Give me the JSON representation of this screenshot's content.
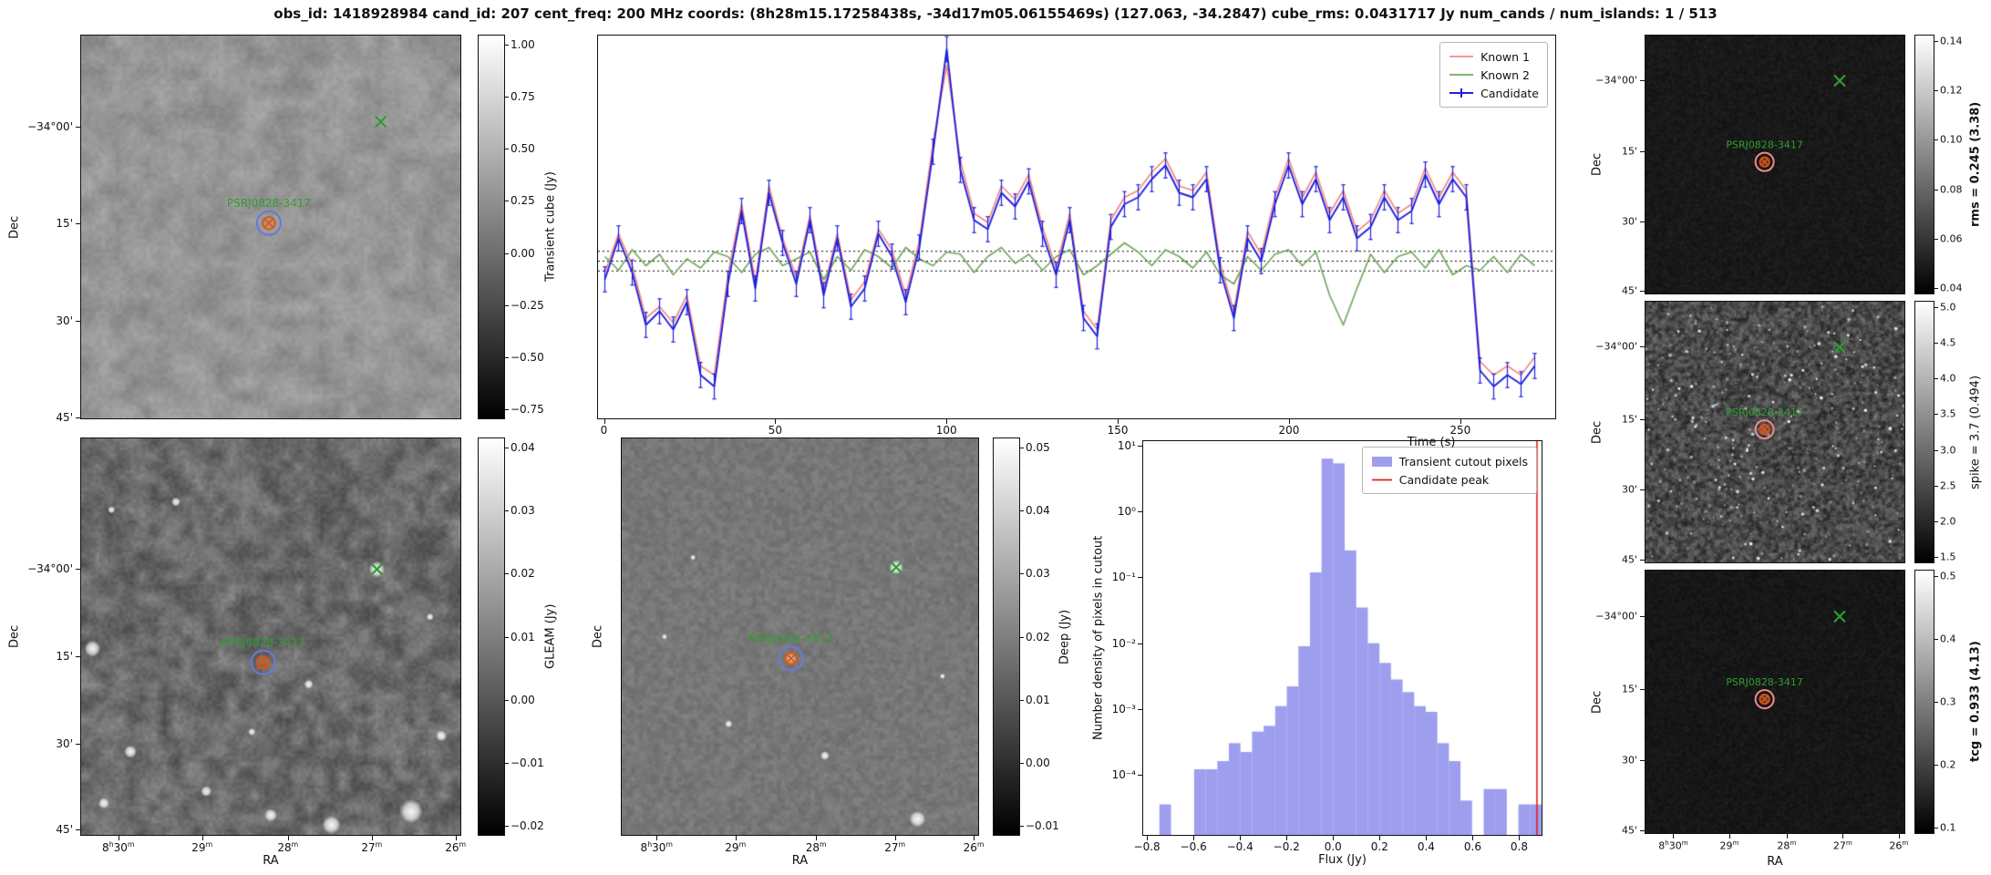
{
  "title": "obs_id: 1418928984 cand_id: 207 cent_freq: 200 MHz coords: (8h28m15.17258438s, -34d17m05.06155469s) (127.063, -34.2847) cube_rms: 0.0431717 Jy num_cands / num_islands: 1 / 513",
  "source": {
    "name": "PSRJ0828-3417"
  },
  "axes": {
    "dec_label": "Dec",
    "ra_label": "RA",
    "dec_ticks": [
      "−34°00'",
      "15'",
      "30'",
      "45'"
    ],
    "ra_ticks": [
      "8h30m",
      "29m",
      "28m",
      "27m",
      "26m"
    ]
  },
  "markers": {
    "known_x_color": "#2f9e2f",
    "source_label_color": "#2f9e2f",
    "source_marker_color": "#d9541e",
    "candidate_ring_color": "#6a79d8",
    "candidate_ring_color_dark": "#ef8a8a"
  },
  "panels": {
    "transient": {
      "cbar_label": "Transient cube (Jy)",
      "cbar_ticks": [
        "1.00",
        "0.75",
        "0.50",
        "0.25",
        "0.00",
        "−0.25",
        "−0.50",
        "−0.75"
      ]
    },
    "gleam": {
      "cbar_label": "GLEAM (Jy)",
      "cbar_ticks": [
        "0.04",
        "0.03",
        "0.02",
        "0.01",
        "0.00",
        "−0.01",
        "−0.02"
      ]
    },
    "deep": {
      "cbar_label": "Deep (Jy)",
      "cbar_ticks": [
        "0.05",
        "0.04",
        "0.03",
        "0.02",
        "0.01",
        "0.00",
        "−0.01"
      ]
    },
    "rms": {
      "label": "rms = 0.245 (3.38)",
      "emphasized": true,
      "cbar_ticks": [
        "0.14",
        "0.12",
        "0.10",
        "0.08",
        "0.06",
        "0.04"
      ]
    },
    "spike": {
      "label": "spike = 3.7 (0.494)",
      "emphasized": false,
      "cbar_ticks": [
        "5.0",
        "4.5",
        "4.0",
        "3.5",
        "3.0",
        "2.5",
        "2.0",
        "1.5"
      ]
    },
    "tcg": {
      "label": "tcg = 0.933 (4.13)",
      "emphasized": true,
      "cbar_ticks": [
        "0.5",
        "0.4",
        "0.3",
        "0.2",
        "0.1"
      ]
    }
  },
  "chart_data": [
    {
      "type": "line",
      "title": "",
      "xlabel": "Time (s)",
      "ylabel": "",
      "xlim": [
        -2,
        278
      ],
      "ylim": [
        -0.69,
        0.99
      ],
      "x_ticks": [
        0,
        50,
        100,
        150,
        200,
        250
      ],
      "threshold_lines": [
        0.0432,
        0.0,
        -0.0432
      ],
      "legend_position": "top-right",
      "x": [
        0,
        4,
        8,
        12,
        16,
        20,
        24,
        28,
        32,
        36,
        40,
        44,
        48,
        52,
        56,
        60,
        64,
        68,
        72,
        76,
        80,
        84,
        88,
        92,
        96,
        100,
        104,
        108,
        112,
        116,
        120,
        124,
        128,
        132,
        136,
        140,
        144,
        148,
        152,
        156,
        160,
        164,
        168,
        172,
        176,
        180,
        184,
        188,
        192,
        196,
        200,
        204,
        208,
        212,
        216,
        220,
        224,
        228,
        232,
        236,
        240,
        244,
        248,
        252,
        256,
        260,
        264,
        268,
        272
      ],
      "series": [
        {
          "name": "Known 1",
          "color": "#f28b82",
          "values": [
            -0.05,
            0.12,
            -0.02,
            -0.25,
            -0.2,
            -0.27,
            -0.15,
            -0.46,
            -0.5,
            -0.06,
            0.25,
            -0.09,
            0.33,
            0.1,
            -0.07,
            0.2,
            -0.12,
            0.12,
            -0.17,
            -0.09,
            0.14,
            0.05,
            -0.15,
            0.09,
            0.52,
            0.86,
            0.44,
            0.21,
            0.17,
            0.33,
            0.27,
            0.38,
            0.15,
            -0.03,
            0.21,
            -0.22,
            -0.3,
            0.18,
            0.28,
            0.31,
            0.39,
            0.45,
            0.33,
            0.31,
            0.39,
            -0.01,
            -0.22,
            0.13,
            0.03,
            0.28,
            0.45,
            0.28,
            0.39,
            0.21,
            0.31,
            0.13,
            0.18,
            0.31,
            0.21,
            0.25,
            0.41,
            0.28,
            0.39,
            0.31,
            -0.44,
            -0.5,
            -0.46,
            -0.5,
            -0.42
          ]
        },
        {
          "name": "Known 2",
          "color": "#74a862",
          "values": [
            0.02,
            -0.04,
            0.05,
            -0.02,
            0.03,
            -0.06,
            0.01,
            -0.03,
            0.04,
            0.02,
            -0.05,
            0.03,
            0.06,
            -0.02,
            0.01,
            0.04,
            -0.08,
            0.02,
            -0.04,
            0.05,
            0.02,
            -0.03,
            0.06,
            0.01,
            -0.02,
            0.04,
            0.03,
            -0.05,
            0.02,
            0.06,
            -0.01,
            0.03,
            -0.04,
            0.02,
            0.05,
            -0.06,
            -0.02,
            0.03,
            0.08,
            0.04,
            -0.02,
            0.05,
            0.02,
            -0.03,
            0.04,
            -0.06,
            -0.1,
            0.02,
            -0.04,
            0.03,
            0.05,
            -0.02,
            0.04,
            -0.15,
            -0.28,
            -0.12,
            0.03,
            -0.05,
            0.02,
            0.04,
            -0.03,
            0.05,
            -0.06,
            -0.02,
            -0.04,
            0.02,
            -0.05,
            0.03,
            -0.02
          ]
        },
        {
          "name": "Candidate",
          "color": "#2020dd",
          "yerr": 0.055,
          "values": [
            -0.08,
            0.1,
            -0.05,
            -0.28,
            -0.22,
            -0.3,
            -0.18,
            -0.5,
            -0.55,
            -0.1,
            0.22,
            -0.12,
            0.3,
            0.08,
            -0.1,
            0.18,
            -0.15,
            0.1,
            -0.2,
            -0.12,
            0.12,
            0.02,
            -0.18,
            0.06,
            0.48,
            0.93,
            0.4,
            0.18,
            0.14,
            0.3,
            0.24,
            0.35,
            0.12,
            -0.06,
            0.18,
            -0.25,
            -0.33,
            0.15,
            0.25,
            0.28,
            0.36,
            0.42,
            0.3,
            0.28,
            0.36,
            -0.04,
            -0.25,
            0.1,
            0.0,
            0.25,
            0.42,
            0.25,
            0.36,
            0.18,
            0.28,
            0.1,
            0.15,
            0.28,
            0.18,
            0.22,
            0.38,
            0.25,
            0.36,
            0.28,
            -0.48,
            -0.55,
            -0.5,
            -0.54,
            -0.46
          ]
        }
      ]
    },
    {
      "type": "bar",
      "title": "",
      "xlabel": "Flux (Jy)",
      "ylabel": "Number density of pixels in cutout",
      "xlim": [
        -0.82,
        0.9
      ],
      "ylog": true,
      "ylim": [
        1.2e-05,
        12
      ],
      "x_ticks": [
        -0.8,
        -0.6,
        -0.4,
        -0.2,
        0.0,
        0.2,
        0.4,
        0.6,
        0.8
      ],
      "x_tick_labels": [
        "−0.8",
        "−0.6",
        "−0.4",
        "−0.2",
        "0.0",
        "0.2",
        "0.4",
        "0.6",
        "0.8"
      ],
      "y_tick_values": [
        10,
        1,
        0.1,
        0.01,
        0.001,
        0.0001
      ],
      "y_tick_labels": [
        "10¹",
        "10⁰",
        "10⁻¹",
        "10⁻²",
        "10⁻³",
        "10⁻⁴"
      ],
      "bin_width": 0.05,
      "bin_centers": [
        -0.725,
        -0.675,
        -0.625,
        -0.575,
        -0.525,
        -0.475,
        -0.425,
        -0.375,
        -0.325,
        -0.275,
        -0.225,
        -0.175,
        -0.125,
        -0.075,
        -0.025,
        0.025,
        0.075,
        0.125,
        0.175,
        0.225,
        0.275,
        0.325,
        0.375,
        0.425,
        0.475,
        0.525,
        0.575,
        0.625,
        0.675,
        0.725,
        0.775,
        0.825,
        0.875
      ],
      "densities": [
        3.5e-05,
        0,
        0,
        0.00012,
        0.00012,
        0.00016,
        0.0003,
        0.00022,
        0.00045,
        0.00055,
        0.0011,
        0.0022,
        0.009,
        0.12,
        6.5,
        5.5,
        0.26,
        0.035,
        0.01,
        0.005,
        0.0028,
        0.0018,
        0.0011,
        0.0009,
        0.0003,
        0.00016,
        4e-05,
        0,
        6e-05,
        6e-05,
        0,
        3.5e-05,
        3.5e-05
      ],
      "candidate_peak": 0.88,
      "bar_color": "#7878e8",
      "bar_alpha": 0.72,
      "line_color": "#e02020",
      "legend": [
        "Transient cutout pixels",
        "Candidate peak"
      ],
      "legend_position": "top-right"
    }
  ]
}
